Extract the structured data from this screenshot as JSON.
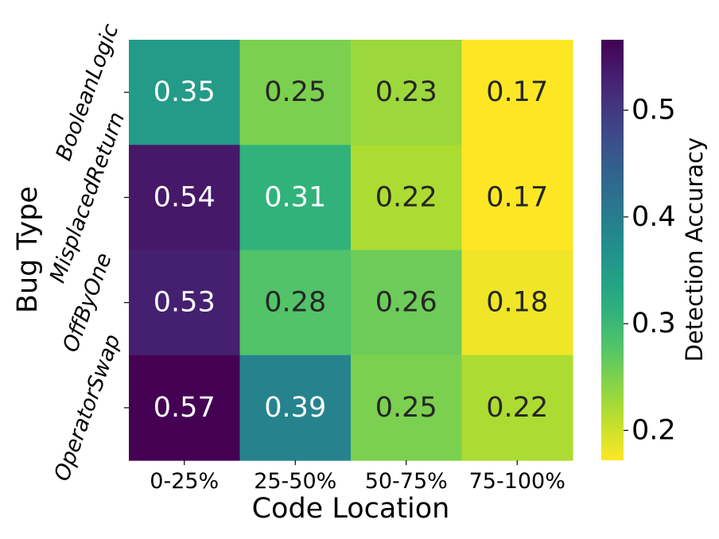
{
  "chart_data": {
    "type": "heatmap",
    "title": "",
    "xlabel": "Code Location",
    "ylabel": "Bug Type",
    "x_categories": [
      "0-25%",
      "25-50%",
      "50-75%",
      "75-100%"
    ],
    "y_categories": [
      "BooleanLogic",
      "MisplacedReturn",
      "OffByOne",
      "OperatorSwap"
    ],
    "values": [
      [
        0.35,
        0.25,
        0.23,
        0.17
      ],
      [
        0.54,
        0.31,
        0.22,
        0.17
      ],
      [
        0.53,
        0.28,
        0.26,
        0.18
      ],
      [
        0.57,
        0.39,
        0.25,
        0.22
      ]
    ],
    "colorbar": {
      "label": "Detection Accuracy",
      "range": [
        0.172,
        0.566
      ],
      "ticks": [
        0.2,
        0.3,
        0.4,
        0.5
      ],
      "colormap": "viridis-reversed"
    }
  }
}
